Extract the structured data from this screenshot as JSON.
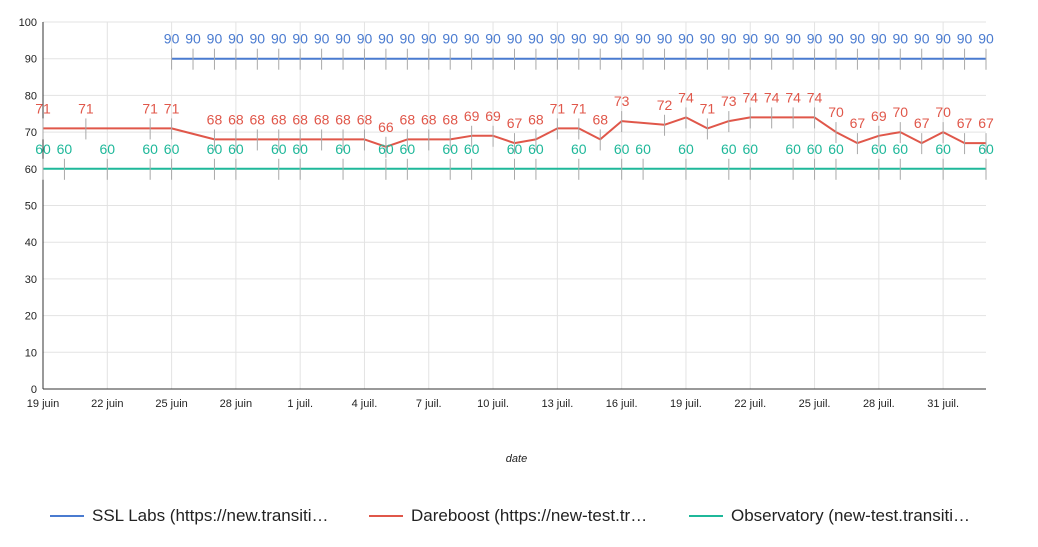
{
  "chart_data": {
    "type": "line",
    "xlabel": "date",
    "ylabel": "",
    "ylim": [
      0,
      100
    ],
    "yticks": [
      0,
      10,
      20,
      30,
      40,
      50,
      60,
      70,
      80,
      90,
      100
    ],
    "x_range": [
      "2021-06-19",
      "2021-08-02"
    ],
    "xticks": [
      {
        "date": "2021-06-19",
        "label": "19 juin"
      },
      {
        "date": "2021-06-22",
        "label": "22 juin"
      },
      {
        "date": "2021-06-25",
        "label": "25 juin"
      },
      {
        "date": "2021-06-28",
        "label": "28 juin"
      },
      {
        "date": "2021-07-01",
        "label": "1 juil."
      },
      {
        "date": "2021-07-04",
        "label": "4 juil."
      },
      {
        "date": "2021-07-07",
        "label": "7 juil."
      },
      {
        "date": "2021-07-10",
        "label": "10 juil."
      },
      {
        "date": "2021-07-13",
        "label": "13 juil."
      },
      {
        "date": "2021-07-16",
        "label": "16 juil."
      },
      {
        "date": "2021-07-19",
        "label": "19 juil."
      },
      {
        "date": "2021-07-22",
        "label": "22 juil."
      },
      {
        "date": "2021-07-25",
        "label": "25 juil."
      },
      {
        "date": "2021-07-28",
        "label": "28 juil."
      },
      {
        "date": "2021-07-31",
        "label": "31 juil."
      }
    ],
    "grid": true,
    "legend_position": "bottom",
    "series": [
      {
        "name": "SSL Labs (https://new.transiti…",
        "color": "#4a7bd0",
        "points": [
          [
            "2021-06-25",
            90
          ],
          [
            "2021-06-26",
            90
          ],
          [
            "2021-06-27",
            90
          ],
          [
            "2021-06-28",
            90
          ],
          [
            "2021-06-29",
            90
          ],
          [
            "2021-06-30",
            90
          ],
          [
            "2021-07-01",
            90
          ],
          [
            "2021-07-02",
            90
          ],
          [
            "2021-07-03",
            90
          ],
          [
            "2021-07-04",
            90
          ],
          [
            "2021-07-05",
            90
          ],
          [
            "2021-07-06",
            90
          ],
          [
            "2021-07-07",
            90
          ],
          [
            "2021-07-08",
            90
          ],
          [
            "2021-07-09",
            90
          ],
          [
            "2021-07-10",
            90
          ],
          [
            "2021-07-11",
            90
          ],
          [
            "2021-07-12",
            90
          ],
          [
            "2021-07-13",
            90
          ],
          [
            "2021-07-14",
            90
          ],
          [
            "2021-07-15",
            90
          ],
          [
            "2021-07-16",
            90
          ],
          [
            "2021-07-17",
            90
          ],
          [
            "2021-07-18",
            90
          ],
          [
            "2021-07-19",
            90
          ],
          [
            "2021-07-20",
            90
          ],
          [
            "2021-07-21",
            90
          ],
          [
            "2021-07-22",
            90
          ],
          [
            "2021-07-23",
            90
          ],
          [
            "2021-07-24",
            90
          ],
          [
            "2021-07-25",
            90
          ],
          [
            "2021-07-26",
            90
          ],
          [
            "2021-07-27",
            90
          ],
          [
            "2021-07-28",
            90
          ],
          [
            "2021-07-29",
            90
          ],
          [
            "2021-07-30",
            90
          ],
          [
            "2021-07-31",
            90
          ],
          [
            "2021-08-01",
            90
          ],
          [
            "2021-08-02",
            90
          ]
        ]
      },
      {
        "name": "Dareboost (https://new-test.tr…",
        "color": "#e0574a",
        "points": [
          [
            "2021-06-19",
            71
          ],
          [
            "2021-06-21",
            71
          ],
          [
            "2021-06-24",
            71
          ],
          [
            "2021-06-25",
            71
          ],
          [
            "2021-06-27",
            68
          ],
          [
            "2021-06-28",
            68
          ],
          [
            "2021-06-29",
            68
          ],
          [
            "2021-06-30",
            68
          ],
          [
            "2021-07-01",
            68
          ],
          [
            "2021-07-02",
            68
          ],
          [
            "2021-07-03",
            68
          ],
          [
            "2021-07-04",
            68
          ],
          [
            "2021-07-05",
            66
          ],
          [
            "2021-07-06",
            68
          ],
          [
            "2021-07-07",
            68
          ],
          [
            "2021-07-08",
            68
          ],
          [
            "2021-07-09",
            69
          ],
          [
            "2021-07-10",
            69
          ],
          [
            "2021-07-11",
            67
          ],
          [
            "2021-07-12",
            68
          ],
          [
            "2021-07-13",
            71
          ],
          [
            "2021-07-14",
            71
          ],
          [
            "2021-07-15",
            68
          ],
          [
            "2021-07-16",
            73
          ],
          [
            "2021-07-18",
            72
          ],
          [
            "2021-07-19",
            74
          ],
          [
            "2021-07-20",
            71
          ],
          [
            "2021-07-21",
            73
          ],
          [
            "2021-07-22",
            74
          ],
          [
            "2021-07-23",
            74
          ],
          [
            "2021-07-24",
            74
          ],
          [
            "2021-07-25",
            74
          ],
          [
            "2021-07-26",
            70
          ],
          [
            "2021-07-27",
            67
          ],
          [
            "2021-07-28",
            69
          ],
          [
            "2021-07-29",
            70
          ],
          [
            "2021-07-30",
            67
          ],
          [
            "2021-07-31",
            70
          ],
          [
            "2021-08-01",
            67
          ],
          [
            "2021-08-02",
            67
          ]
        ]
      },
      {
        "name": "Observatory (new-test.transiti…",
        "color": "#1fb89a",
        "points": [
          [
            "2021-06-19",
            60
          ],
          [
            "2021-06-20",
            60
          ],
          [
            "2021-06-22",
            60
          ],
          [
            "2021-06-24",
            60
          ],
          [
            "2021-06-25",
            60
          ],
          [
            "2021-06-27",
            60
          ],
          [
            "2021-06-28",
            60
          ],
          [
            "2021-06-30",
            60
          ],
          [
            "2021-07-01",
            60
          ],
          [
            "2021-07-03",
            60
          ],
          [
            "2021-07-05",
            60
          ],
          [
            "2021-07-06",
            60
          ],
          [
            "2021-07-08",
            60
          ],
          [
            "2021-07-09",
            60
          ],
          [
            "2021-07-11",
            60
          ],
          [
            "2021-07-12",
            60
          ],
          [
            "2021-07-14",
            60
          ],
          [
            "2021-07-16",
            60
          ],
          [
            "2021-07-17",
            60
          ],
          [
            "2021-07-19",
            60
          ],
          [
            "2021-07-21",
            60
          ],
          [
            "2021-07-22",
            60
          ],
          [
            "2021-07-24",
            60
          ],
          [
            "2021-07-25",
            60
          ],
          [
            "2021-07-26",
            60
          ],
          [
            "2021-07-28",
            60
          ],
          [
            "2021-07-29",
            60
          ],
          [
            "2021-07-31",
            60
          ],
          [
            "2021-08-02",
            60
          ]
        ]
      }
    ]
  }
}
